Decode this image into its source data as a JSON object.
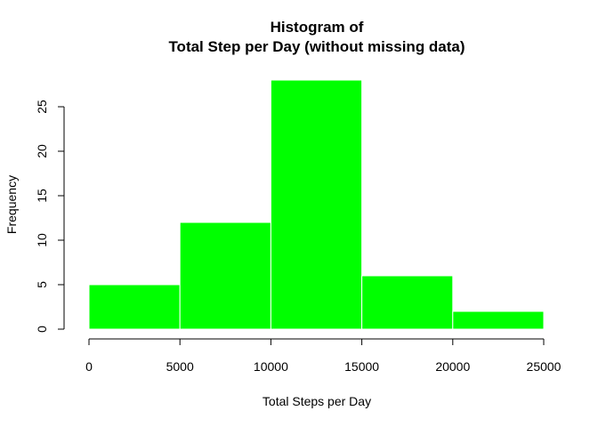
{
  "chart_data": {
    "type": "bar",
    "title": "Histogram of",
    "subtitle": "Total Step per Day (without missing data)",
    "xlabel": "Total Steps per Day",
    "ylabel": "Frequency",
    "bins": [
      {
        "from": 0,
        "to": 5000,
        "value": 5
      },
      {
        "from": 5000,
        "to": 10000,
        "value": 12
      },
      {
        "from": 10000,
        "to": 15000,
        "value": 28
      },
      {
        "from": 15000,
        "to": 20000,
        "value": 6
      },
      {
        "from": 20000,
        "to": 25000,
        "value": 2
      }
    ],
    "xlim": [
      0,
      25000
    ],
    "ylim": [
      0,
      28
    ],
    "x_ticks": [
      0,
      5000,
      10000,
      15000,
      20000,
      25000
    ],
    "x_tick_labels": [
      "0",
      "5000",
      "10000",
      "15000",
      "20000",
      "25000"
    ],
    "y_ticks": [
      0,
      5,
      10,
      15,
      20,
      25
    ],
    "y_tick_labels": [
      "0",
      "5",
      "10",
      "15",
      "20",
      "25"
    ],
    "bar_color": "#00FF00",
    "bar_border_color": "#FFFFFF",
    "grid": false,
    "legend": "none"
  }
}
